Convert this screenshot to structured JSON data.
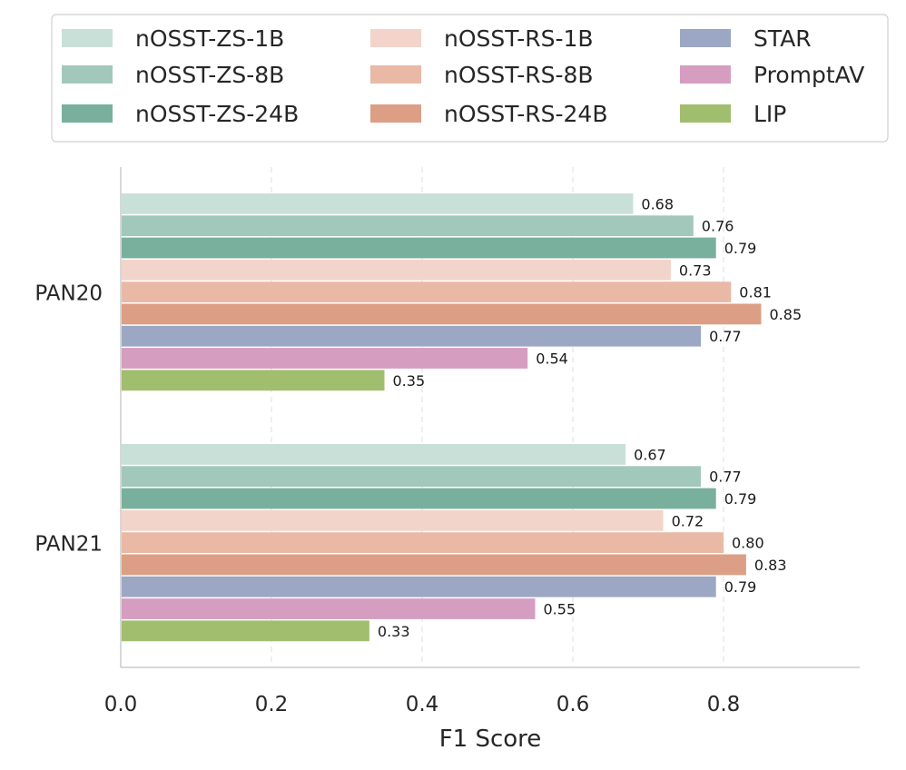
{
  "chart_data": {
    "type": "bar",
    "orientation": "horizontal",
    "title": "",
    "xlabel": "F1 Score",
    "ylabel": "",
    "xlim": [
      0,
      0.98
    ],
    "xticks": [
      "0.0",
      "0.2",
      "0.4",
      "0.6",
      "0.8"
    ],
    "grid": "vertical-dashed",
    "legend_position": "top",
    "categories": [
      "PAN20",
      "PAN21"
    ],
    "series": [
      {
        "name": "nOSST-ZS-1B",
        "color": "#c9e0d8",
        "values": [
          0.68,
          0.67
        ],
        "labels": [
          "0.68",
          "0.67"
        ]
      },
      {
        "name": "nOSST-ZS-8B",
        "color": "#a2c8bc",
        "values": [
          0.76,
          0.77
        ],
        "labels": [
          "0.76",
          "0.77"
        ]
      },
      {
        "name": "nOSST-ZS-24B",
        "color": "#79b09d",
        "values": [
          0.79,
          0.79
        ],
        "labels": [
          "0.79",
          "0.79"
        ]
      },
      {
        "name": "nOSST-RS-1B",
        "color": "#f2d4ca",
        "values": [
          0.73,
          0.72
        ],
        "labels": [
          "0.73",
          "0.72"
        ]
      },
      {
        "name": "nOSST-RS-8B",
        "color": "#e9b9a6",
        "values": [
          0.81,
          0.8
        ],
        "labels": [
          "0.81",
          "0.80"
        ]
      },
      {
        "name": "nOSST-RS-24B",
        "color": "#dc9e85",
        "values": [
          0.85,
          0.83
        ],
        "labels": [
          "0.85",
          "0.83"
        ]
      },
      {
        "name": "STAR",
        "color": "#9ba7c3",
        "values": [
          0.77,
          0.79
        ],
        "labels": [
          "0.77",
          "0.79"
        ]
      },
      {
        "name": "PromptAV",
        "color": "#d59dc0",
        "values": [
          0.54,
          0.55
        ],
        "labels": [
          "0.54",
          "0.55"
        ]
      },
      {
        "name": "LIP",
        "color": "#a1bd6e",
        "values": [
          0.35,
          0.33
        ],
        "labels": [
          "0.35",
          "0.33"
        ]
      }
    ]
  }
}
